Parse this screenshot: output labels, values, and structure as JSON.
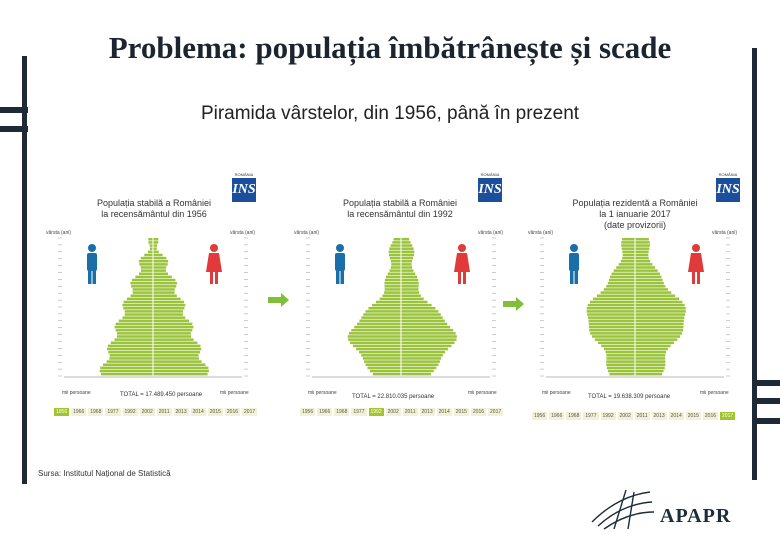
{
  "slide": {
    "title": "Problema: populația îmbătrânește și scade",
    "subtitle": "Piramida vârstelor, din 1956, până în prezent",
    "source": "Sursa: Institutul Național de Statistică",
    "logo_text": "APAPR"
  },
  "colors": {
    "pyramid_bar": "#9bc43c",
    "male_icon": "#1b6fa8",
    "female_icon": "#e03a3a",
    "logo_blue": "#1b4f9c",
    "dark": "#1f2a37"
  },
  "panels": [
    {
      "title_line1": "Populația stabilă a României",
      "title_line2": "la recensământul din 1956",
      "title_line3": "",
      "logo_label": "ROMÂNIA",
      "logo_mark": "INS",
      "axis_left": "vârsta (ani)",
      "axis_right": "vârsta (ani)",
      "unit_left": "mii persoane",
      "unit_right": "mii persoane",
      "total": "TOTAL = 17.489.450 persoane",
      "years": [
        "1956",
        "1966",
        "1968",
        "1977",
        "1992",
        "2002",
        "2011",
        "2013",
        "2014",
        "2015",
        "2016",
        "2017"
      ],
      "highlight_year": "1956"
    },
    {
      "title_line1": "Populația stabilă a României",
      "title_line2": "la recensământul din 1992",
      "title_line3": "",
      "logo_label": "ROMÂNIA",
      "logo_mark": "INS",
      "axis_left": "vârsta (ani)",
      "axis_right": "vârsta (ani)",
      "unit_left": "mii persoane",
      "unit_right": "mii persoane",
      "total": "TOTAL = 22.810.035 persoane",
      "years": [
        "1956",
        "1966",
        "1968",
        "1977",
        "1992",
        "2002",
        "2011",
        "2013",
        "2014",
        "2015",
        "2016",
        "2017"
      ],
      "highlight_year": "1992"
    },
    {
      "title_line1": "Populația rezidentă a României",
      "title_line2": "la 1 ianuarie 2017",
      "title_line3": "(date provizorii)",
      "logo_label": "ROMÂNIA",
      "logo_mark": "INS",
      "axis_left": "vârsta (ani)",
      "axis_right": "vârsta (ani)",
      "unit_left": "mii persoane",
      "unit_right": "mii persoane",
      "total": "TOTAL = 19.638.309 persoane",
      "years": [
        "1956",
        "1966",
        "1968",
        "1977",
        "1992",
        "2002",
        "2011",
        "2013",
        "2014",
        "2015",
        "2016",
        "2017"
      ],
      "highlight_year": "2017"
    }
  ]
}
